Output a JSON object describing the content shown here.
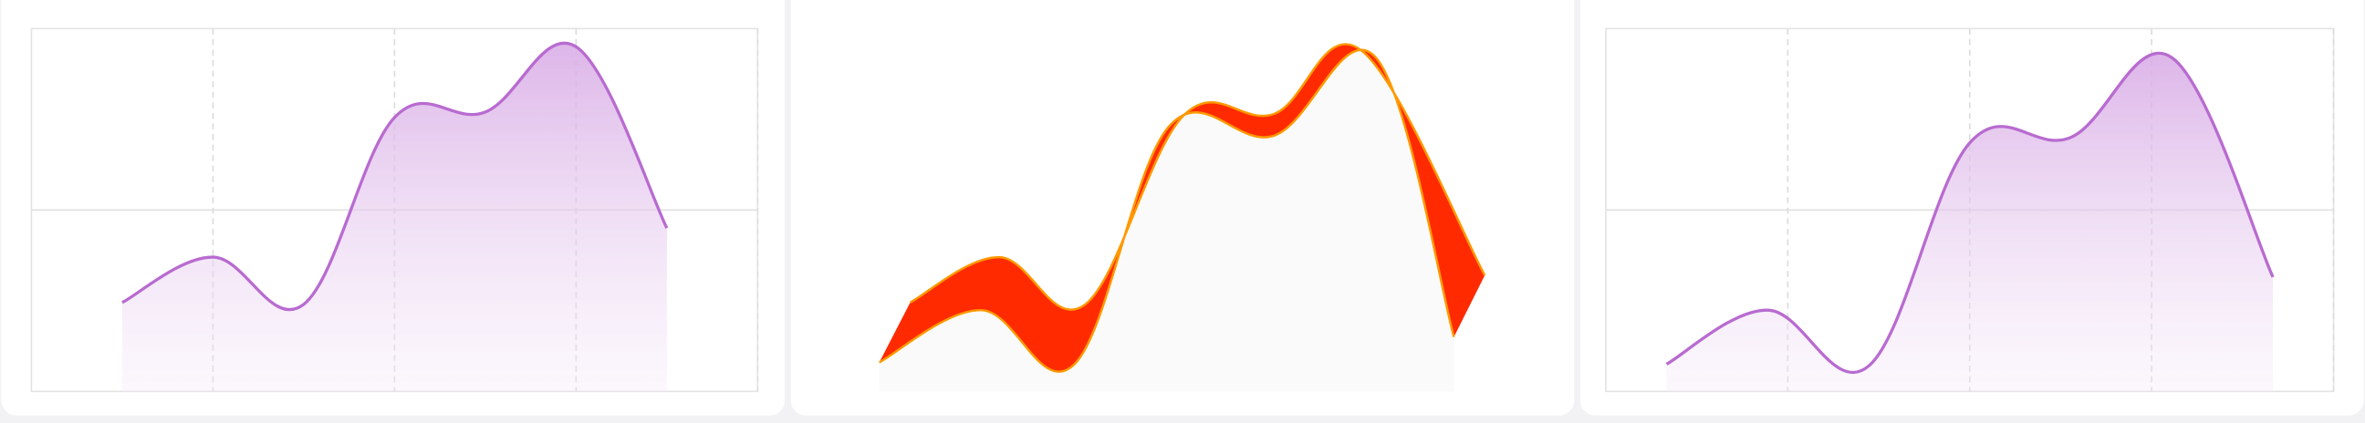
{
  "chart_data": [
    {
      "type": "area",
      "xlim": [
        0,
        8
      ],
      "ylim": [
        0,
        100
      ],
      "xticks": [
        2,
        4,
        6,
        8
      ],
      "yticks": [
        50
      ],
      "grid": true,
      "series": [
        {
          "color": "#b86bd0",
          "x": [
            1,
            2,
            3,
            4,
            5,
            6,
            7
          ],
          "values": [
            24.5,
            37,
            24,
            75.5,
            77,
            95,
            45
          ]
        }
      ]
    },
    {
      "type": "band",
      "xlim": [
        0,
        8
      ],
      "ylim": [
        0,
        100
      ],
      "grid": false,
      "series": [
        {
          "color": "#ff9900",
          "x": [
            1,
            1.98,
            2.93,
            4.01,
            5.01,
            5.97,
            7.33
          ],
          "values": [
            24.5,
            37,
            24,
            76,
            76.5,
            94,
            32
          ]
        },
        {
          "color": "#ff2a00",
          "x": [
            0.66,
            1.78,
            2.81,
            3.85,
            5.01,
            6.13,
            6.99
          ],
          "values": [
            8,
            22.4,
            7.5,
            73,
            70.5,
            92,
            15
          ]
        }
      ]
    },
    {
      "type": "area",
      "xlim": [
        0,
        7.2
      ],
      "ylim": [
        0,
        100
      ],
      "xticks": [
        1.8,
        3.6,
        5.4,
        7.2
      ],
      "yticks": [
        50
      ],
      "grid": true,
      "series": [
        {
          "color": "#b86bd0",
          "x": [
            0.6,
            1.6,
            2.6,
            3.6,
            4.6,
            5.6,
            6.6
          ],
          "values": [
            7.5,
            22.4,
            7,
            68.5,
            70,
            92,
            31.5
          ]
        }
      ]
    }
  ]
}
